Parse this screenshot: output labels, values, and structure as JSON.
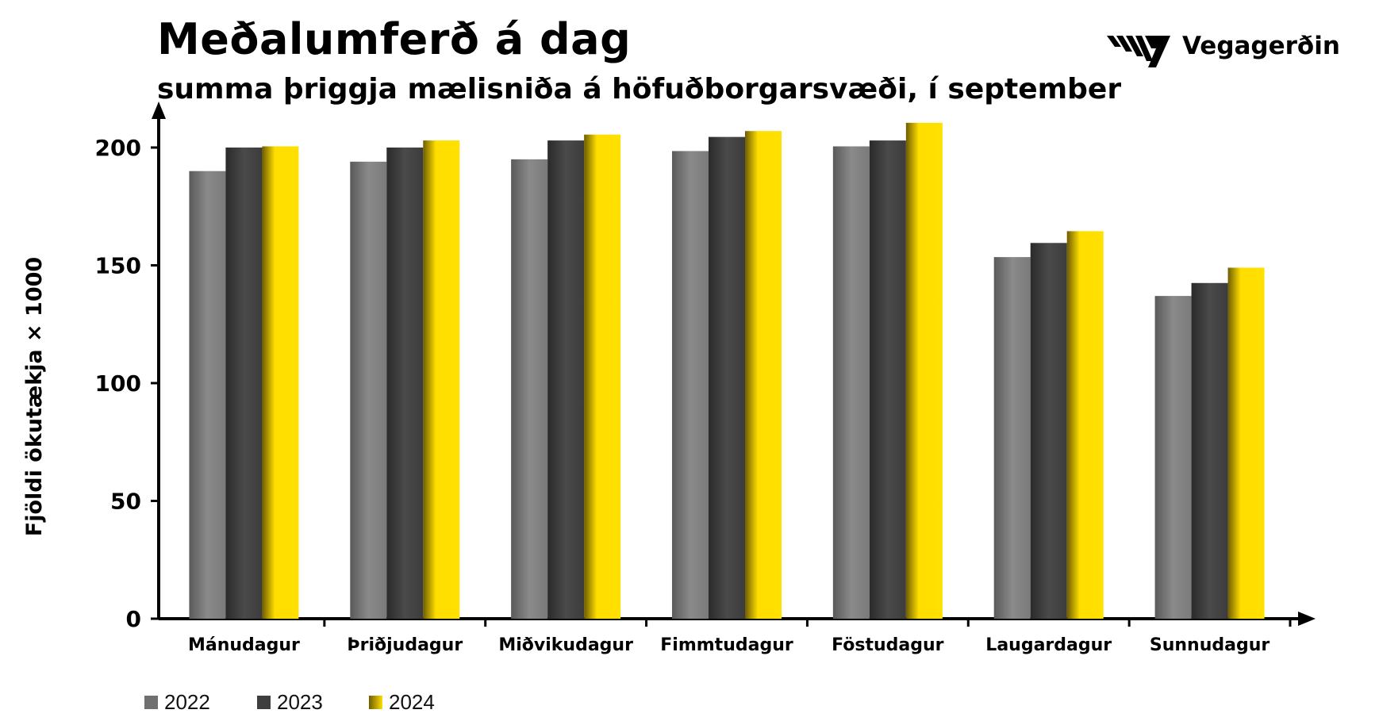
{
  "title": "Meðalumferð á dag",
  "subtitle": "summa þriggja mælisniða á höfuðborgarsvæði, í september",
  "logo": {
    "text": "Vegagerðin",
    "icon": "vegagerdin-stripes-logo"
  },
  "chart_data": {
    "type": "bar",
    "ylabel": "Fjöldi ökutækja × 1000",
    "xlabel": "",
    "ylim": [
      0,
      210
    ],
    "yticks": [
      0,
      50,
      100,
      150,
      200
    ],
    "categories": [
      "Mánudagur",
      "Þriðjudagur",
      "Miðvikudagur",
      "Fimmtudagur",
      "Föstudagur",
      "Laugardagur",
      "Sunnudagur"
    ],
    "series": [
      {
        "name": "2022",
        "values": [
          190,
          194,
          195,
          198.5,
          200.5,
          153.5,
          137
        ],
        "color": "#7a7a7a"
      },
      {
        "name": "2023",
        "values": [
          200,
          200,
          203,
          204.5,
          203,
          159.5,
          142.5
        ],
        "color": "#3e3e3e"
      },
      {
        "name": "2024",
        "values": [
          200.5,
          203,
          205.5,
          207,
          210.5,
          164.5,
          149
        ],
        "color": "#ffde00"
      }
    ],
    "grid": false,
    "legend_position": "bottom-left"
  }
}
